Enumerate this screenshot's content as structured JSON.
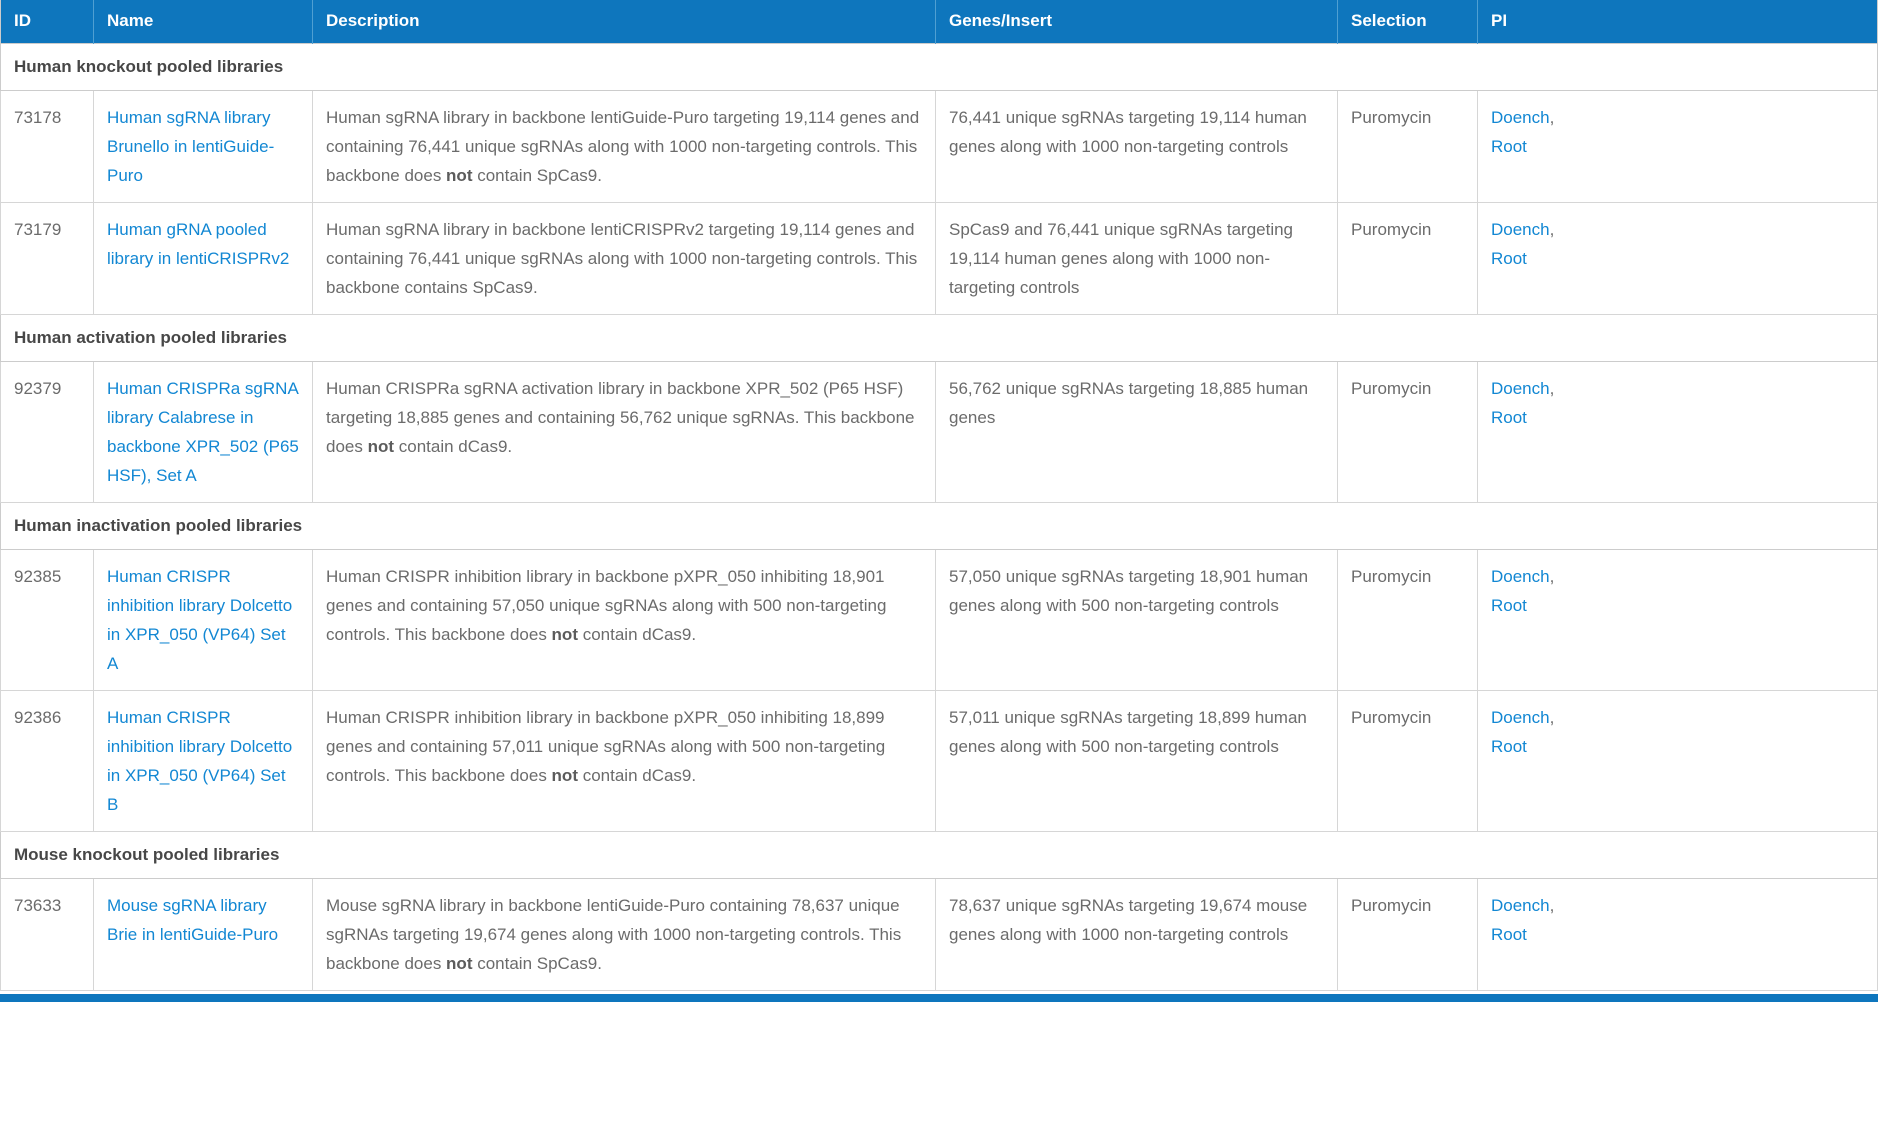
{
  "colors": {
    "header_bg": "#0e76bd",
    "header_divider": "#4f9fd2",
    "link_blue": "#1287d3",
    "body_text": "#6b6b6b",
    "section_text": "#474747"
  },
  "table": {
    "columns": [
      "ID",
      "Name",
      "Description",
      "Genes/Insert",
      "Selection",
      "PI"
    ],
    "groups": [
      {
        "section": "Human knockout pooled libraries",
        "rows": [
          {
            "id": "73178",
            "name": "Human sgRNA library Brunello in lentiGuide-Puro",
            "description": [
              {
                "text": "Human sgRNA library in backbone lentiGuide-Puro targeting 19,114 genes and containing 76,441 unique sgRNAs along with 1000 non-targeting controls. This backbone does ",
                "bold": false
              },
              {
                "text": "not",
                "bold": true
              },
              {
                "text": " contain SpCas9.",
                "bold": false
              }
            ],
            "genes_insert": "76,441 unique sgRNAs targeting 19,114 human genes along with 1000 non-targeting controls",
            "selection": "Puromycin",
            "pi": [
              "Doench",
              "Root"
            ]
          },
          {
            "id": "73179",
            "name": "Human gRNA pooled library in lentiCRISPRv2",
            "description": [
              {
                "text": "Human sgRNA library in backbone lentiCRISPRv2 targeting 19,114 genes and containing 76,441 unique sgRNAs along with 1000 non-targeting controls. This backbone contains SpCas9.",
                "bold": false
              }
            ],
            "genes_insert": "SpCas9 and 76,441 unique sgRNAs targeting 19,114 human genes along with 1000 non-targeting controls",
            "selection": "Puromycin",
            "pi": [
              "Doench",
              "Root"
            ]
          }
        ]
      },
      {
        "section": "Human activation pooled libraries",
        "rows": [
          {
            "id": "92379",
            "name": "Human CRISPRa sgRNA library Calabrese in backbone XPR_502 (P65 HSF), Set A",
            "description": [
              {
                "text": "Human CRISPRa sgRNA activation library in backbone XPR_502 (P65 HSF) targeting 18,885 genes and containing 56,762 unique sgRNAs. This backbone does ",
                "bold": false
              },
              {
                "text": "not",
                "bold": true
              },
              {
                "text": " contain dCas9.",
                "bold": false
              }
            ],
            "genes_insert": "56,762 unique sgRNAs targeting 18,885 human genes",
            "selection": "Puromycin",
            "pi": [
              "Doench",
              "Root"
            ]
          }
        ]
      },
      {
        "section": "Human inactivation pooled libraries",
        "rows": [
          {
            "id": "92385",
            "name": "Human CRISPR inhibition library Dolcetto in XPR_050 (VP64) Set A",
            "description": [
              {
                "text": "Human CRISPR inhibition library in backbone pXPR_050 inhibiting 18,901 genes and containing 57,050 unique sgRNAs along with 500 non-targeting controls. This backbone does ",
                "bold": false
              },
              {
                "text": "not",
                "bold": true
              },
              {
                "text": " contain dCas9.",
                "bold": false
              }
            ],
            "genes_insert": "57,050 unique sgRNAs targeting 18,901 human genes along with 500 non-targeting controls",
            "selection": "Puromycin",
            "pi": [
              "Doench",
              "Root"
            ]
          },
          {
            "id": "92386",
            "name": "Human CRISPR inhibition library Dolcetto in XPR_050 (VP64) Set B",
            "description": [
              {
                "text": "Human CRISPR inhibition library in backbone pXPR_050 inhibiting 18,899 genes and containing 57,011 unique sgRNAs along with 500 non-targeting controls. This backbone does ",
                "bold": false
              },
              {
                "text": "not",
                "bold": true
              },
              {
                "text": " contain dCas9.",
                "bold": false
              }
            ],
            "genes_insert": "57,011 unique sgRNAs targeting 18,899 human genes along with 500 non-targeting controls",
            "selection": "Puromycin",
            "pi": [
              "Doench",
              "Root"
            ]
          }
        ]
      },
      {
        "section": "Mouse knockout pooled libraries",
        "rows": [
          {
            "id": "73633",
            "name": "Mouse sgRNA library Brie in lentiGuide-Puro",
            "description": [
              {
                "text": "Mouse sgRNA library in backbone lentiGuide-Puro containing 78,637 unique sgRNAs targeting 19,674 genes along with 1000 non-targeting controls. This backbone does ",
                "bold": false
              },
              {
                "text": "not",
                "bold": true
              },
              {
                "text": " contain SpCas9.",
                "bold": false
              }
            ],
            "genes_insert": "78,637 unique sgRNAs targeting 19,674 mouse genes along with 1000 non-targeting controls",
            "selection": "Puromycin",
            "pi": [
              "Doench",
              "Root"
            ]
          }
        ]
      }
    ]
  }
}
